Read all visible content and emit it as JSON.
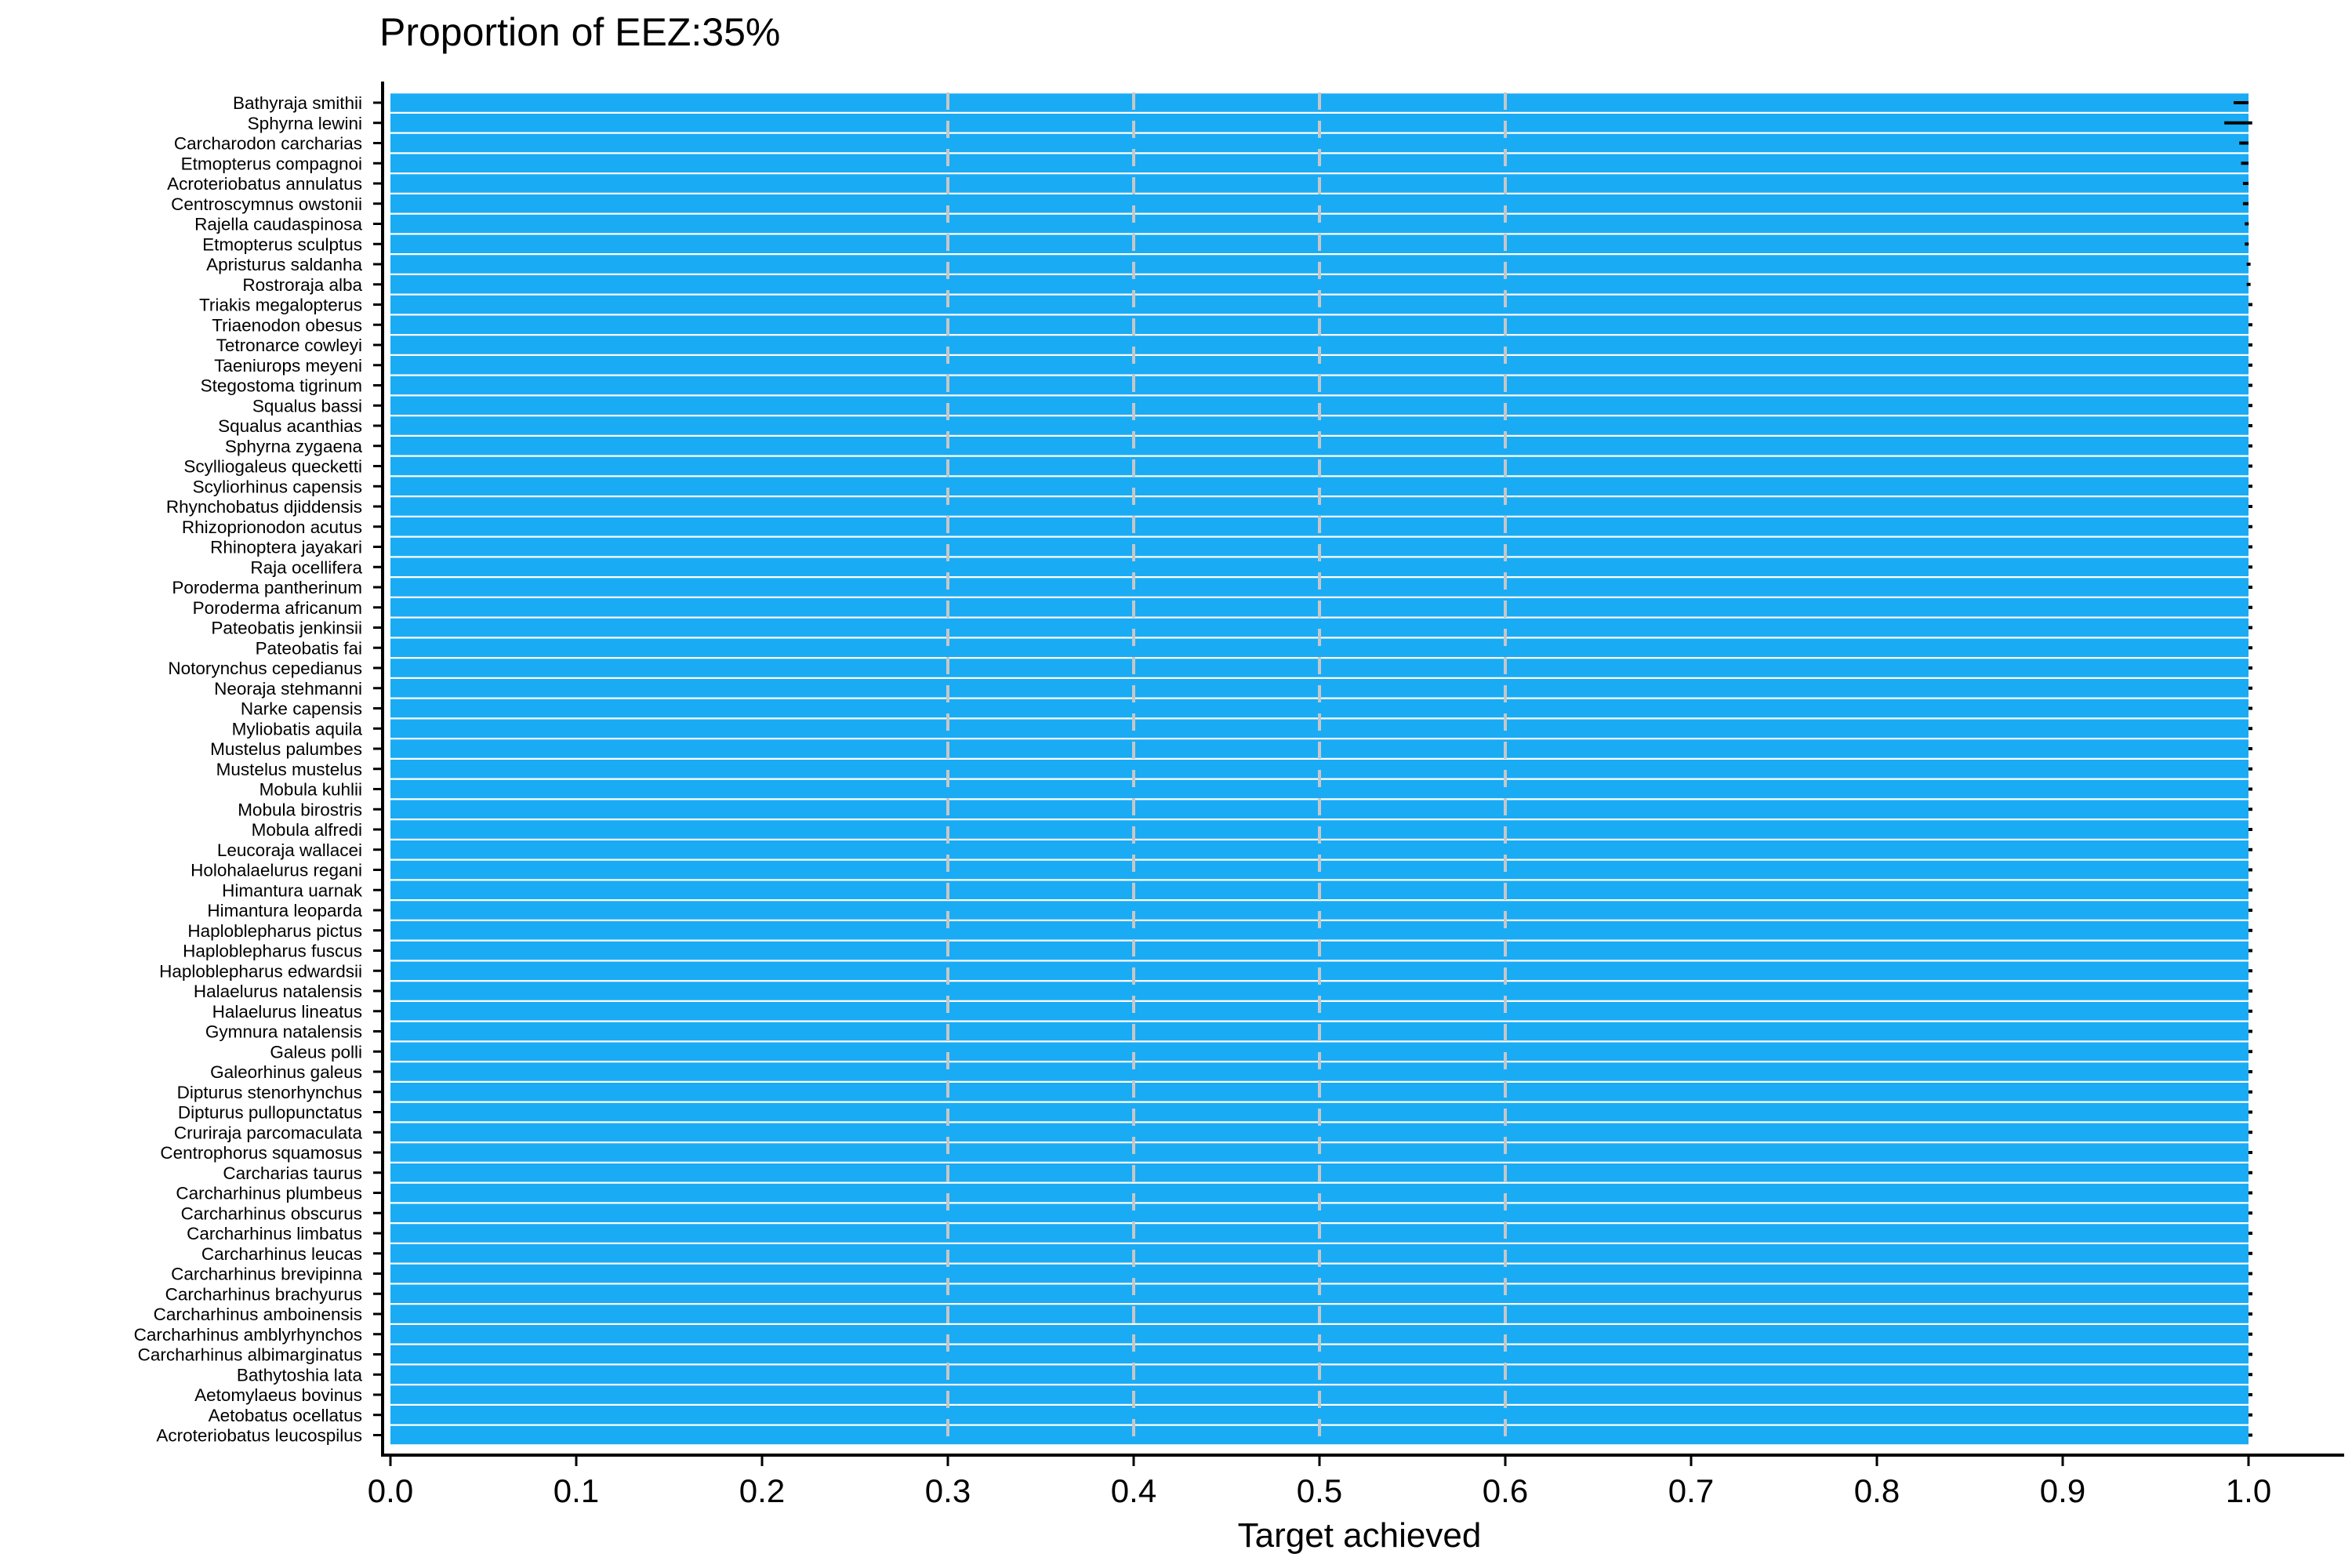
{
  "chart_data": {
    "type": "bar",
    "orientation": "horizontal",
    "title": "Proportion of EEZ:35%",
    "xlabel": "Target achieved",
    "ylabel": "",
    "xlim": [
      0.0,
      1.0
    ],
    "xticks": [
      "0.0",
      "0.1",
      "0.2",
      "0.3",
      "0.4",
      "0.5",
      "0.6",
      "0.7",
      "0.8",
      "0.9",
      "1.0"
    ],
    "reference_lines": [
      0.3,
      0.4,
      0.5,
      0.6
    ],
    "bar_color": "#1aabf5",
    "reference_line_color": "#c7c7c7",
    "categories": [
      "Bathyraja smithii",
      "Sphyrna lewini",
      "Carcharodon carcharias",
      "Etmopterus compagnoi",
      "Acroteriobatus annulatus",
      "Centroscymnus owstonii",
      "Rajella caudaspinosa",
      "Etmopterus sculptus",
      "Apristurus saldanha",
      "Rostroraja alba",
      "Triakis megalopterus",
      "Triaenodon obesus",
      "Tetronarce cowleyi",
      "Taeniurops meyeni",
      "Stegostoma tigrinum",
      "Squalus bassi",
      "Squalus acanthias",
      "Sphyrna zygaena",
      "Scylliogaleus quecketti",
      "Scyliorhinus capensis",
      "Rhynchobatus djiddensis",
      "Rhizoprionodon acutus",
      "Rhinoptera jayakari",
      "Raja ocellifera",
      "Poroderma pantherinum",
      "Poroderma africanum",
      "Pateobatis jenkinsii",
      "Pateobatis fai",
      "Notorynchus cepedianus",
      "Neoraja stehmanni",
      "Narke capensis",
      "Myliobatis aquila",
      "Mustelus palumbes",
      "Mustelus mustelus",
      "Mobula kuhlii",
      "Mobula birostris",
      "Mobula alfredi",
      "Leucoraja wallacei",
      "Holohalaelurus regani",
      "Himantura uarnak",
      "Himantura leoparda",
      "Haploblepharus pictus",
      "Haploblepharus fuscus",
      "Haploblepharus edwardsii",
      "Halaelurus natalensis",
      "Halaelurus lineatus",
      "Gymnura natalensis",
      "Galeus polli",
      "Galeorhinus galeus",
      "Dipturus stenorhynchus",
      "Dipturus pullopunctatus",
      "Cruriraja parcomaculata",
      "Centrophorus squamosus",
      "Carcharias taurus",
      "Carcharhinus plumbeus",
      "Carcharhinus obscurus",
      "Carcharhinus limbatus",
      "Carcharhinus leucas",
      "Carcharhinus brevipinna",
      "Carcharhinus brachyurus",
      "Carcharhinus amboinensis",
      "Carcharhinus amblyrhynchos",
      "Carcharhinus albimarginatus",
      "Bathytoshia lata",
      "Aetomylaeus bovinus",
      "Aetobatus ocellatus",
      "Acroteriobatus leucospilus"
    ],
    "values": [
      1.0,
      1.0,
      1.0,
      1.0,
      1.0,
      1.0,
      1.0,
      1.0,
      1.0,
      1.0,
      1.0,
      1.0,
      1.0,
      1.0,
      1.0,
      1.0,
      1.0,
      1.0,
      1.0,
      1.0,
      1.0,
      1.0,
      1.0,
      1.0,
      1.0,
      1.0,
      1.0,
      1.0,
      1.0,
      1.0,
      1.0,
      1.0,
      1.0,
      1.0,
      1.0,
      1.0,
      1.0,
      1.0,
      1.0,
      1.0,
      1.0,
      1.0,
      1.0,
      1.0,
      1.0,
      1.0,
      1.0,
      1.0,
      1.0,
      1.0,
      1.0,
      1.0,
      1.0,
      1.0,
      1.0,
      1.0,
      1.0,
      1.0,
      1.0,
      1.0,
      1.0,
      1.0,
      1.0,
      1.0,
      1.0,
      1.0,
      1.0
    ],
    "error_low": [
      0.992,
      0.987,
      0.995,
      0.996,
      0.997,
      0.997,
      0.998,
      0.998,
      0.999,
      0.999,
      1.0,
      1.0,
      1.0,
      1.0,
      1.0,
      1.0,
      1.0,
      1.0,
      1.0,
      1.0,
      1.0,
      1.0,
      1.0,
      1.0,
      1.0,
      1.0,
      1.0,
      1.0,
      1.0,
      1.0,
      1.0,
      1.0,
      1.0,
      1.0,
      1.0,
      1.0,
      1.0,
      1.0,
      1.0,
      1.0,
      1.0,
      1.0,
      1.0,
      1.0,
      1.0,
      1.0,
      1.0,
      1.0,
      1.0,
      1.0,
      1.0,
      1.0,
      1.0,
      1.0,
      1.0,
      1.0,
      1.0,
      1.0,
      1.0,
      1.0,
      1.0,
      1.0,
      1.0,
      1.0,
      1.0,
      1.0,
      1.0
    ],
    "error_high": [
      1.0,
      1.002,
      1.0,
      1.0,
      1.0,
      1.0,
      1.0,
      1.0,
      1.0,
      1.0,
      1.0,
      1.0,
      1.0,
      1.0,
      1.0,
      1.0,
      1.0,
      1.0,
      1.0,
      1.0,
      1.0,
      1.0,
      1.0,
      1.0,
      1.0,
      1.0,
      1.0,
      1.0,
      1.0,
      1.0,
      1.0,
      1.0,
      1.0,
      1.0,
      1.0,
      1.0,
      1.0,
      1.0,
      1.0,
      1.0,
      1.0,
      1.0,
      1.0,
      1.0,
      1.0,
      1.0,
      1.0,
      1.0,
      1.0,
      1.0,
      1.0,
      1.0,
      1.0,
      1.0,
      1.0,
      1.0,
      1.0,
      1.0,
      1.0,
      1.0,
      1.0,
      1.0,
      1.0,
      1.0,
      1.0,
      1.0,
      1.0
    ]
  }
}
